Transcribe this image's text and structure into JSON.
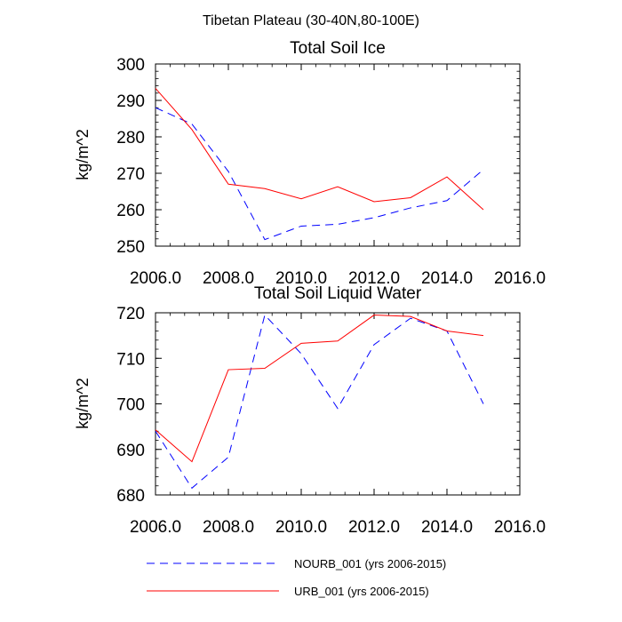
{
  "figure_title": "Tibetan Plateau (30-40N,80-100E)",
  "chart_data": [
    {
      "type": "line",
      "title": "Total Soil Ice",
      "xlabel": "",
      "ylabel": "kg/m^2",
      "xlim": [
        2006,
        2016
      ],
      "ylim": [
        250,
        300
      ],
      "x_ticks": [
        "2006.0",
        "2008.0",
        "2010.0",
        "2012.0",
        "2014.0",
        "2016.0"
      ],
      "y_ticks": [
        "250",
        "260",
        "270",
        "280",
        "290",
        "300"
      ],
      "x": [
        2006,
        2007,
        2008,
        2009,
        2010,
        2011,
        2012,
        2013,
        2014,
        2015
      ],
      "series": [
        {
          "name": "NOURB_001 (yrs 2006-2015)",
          "color": "#0000ff",
          "style": "dashed",
          "values": [
            288.0,
            283.5,
            270.5,
            251.8,
            255.5,
            256.0,
            257.8,
            260.5,
            262.5,
            271.0
          ]
        },
        {
          "name": "URB_001 (yrs 2006-2015)",
          "color": "#ff0000",
          "style": "solid",
          "values": [
            293.3,
            282.0,
            267.0,
            265.8,
            263.0,
            266.3,
            262.2,
            263.3,
            269.0,
            260.0
          ]
        }
      ]
    },
    {
      "type": "line",
      "title": "Total Soil Liquid Water",
      "xlabel": "",
      "ylabel": "kg/m^2",
      "xlim": [
        2006,
        2016
      ],
      "ylim": [
        680,
        720
      ],
      "x_ticks": [
        "2006.0",
        "2008.0",
        "2010.0",
        "2012.0",
        "2014.0",
        "2016.0"
      ],
      "y_ticks": [
        "680",
        "690",
        "700",
        "710",
        "720"
      ],
      "x": [
        2006,
        2007,
        2008,
        2009,
        2010,
        2011,
        2012,
        2013,
        2014,
        2015
      ],
      "series": [
        {
          "name": "NOURB_001 (yrs 2006-2015)",
          "color": "#0000ff",
          "style": "dashed",
          "values": [
            694.0,
            681.5,
            688.3,
            719.5,
            711.0,
            699.0,
            713.0,
            718.8,
            716.0,
            700.0
          ]
        },
        {
          "name": "URB_001 (yrs 2006-2015)",
          "color": "#ff0000",
          "style": "solid",
          "values": [
            694.3,
            687.3,
            707.5,
            707.8,
            713.3,
            713.8,
            719.5,
            719.2,
            716.0,
            715.0
          ]
        }
      ]
    }
  ],
  "legend": [
    {
      "label": "NOURB_001 (yrs 2006-2015)",
      "color": "#0000ff",
      "style": "dashed"
    },
    {
      "label": "URB_001 (yrs 2006-2015)",
      "color": "#ff0000",
      "style": "solid"
    }
  ]
}
